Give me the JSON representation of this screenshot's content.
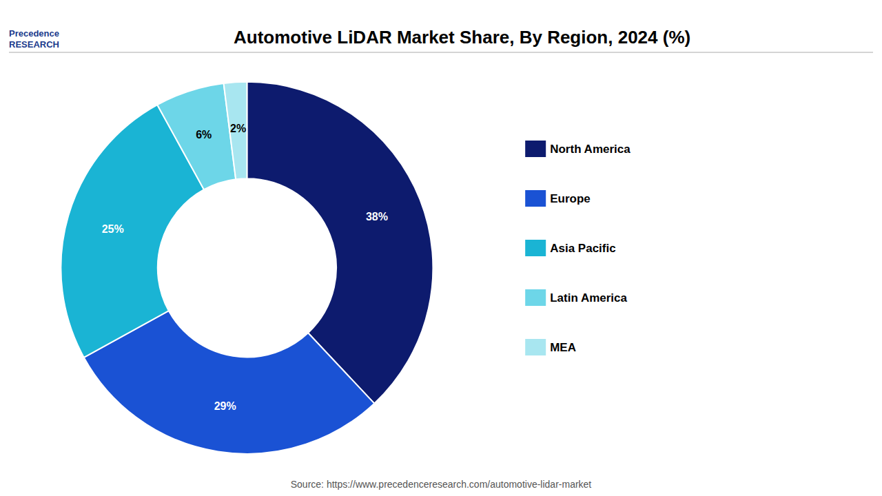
{
  "chart_data": {
    "type": "pie",
    "title": "Automotive LiDAR Market Share, By Region, 2024 (%)",
    "categories": [
      "North America",
      "Europe",
      "Asia Pacific",
      "Latin America",
      "MEA"
    ],
    "values": [
      38,
      29,
      25,
      6,
      2
    ],
    "value_labels": [
      "38%",
      "29%",
      "25%",
      "6%",
      "2%"
    ],
    "colors": [
      "#0d1b6e",
      "#1a52d4",
      "#1ab4d4",
      "#6dd6e8",
      "#a8e6f0"
    ],
    "data_labels": true,
    "legend": "right",
    "annotations": [
      "Precedence\nRESEARCH",
      "Source: https://www.precedenceresearch.com/automotive-lidar-market"
    ]
  }
}
